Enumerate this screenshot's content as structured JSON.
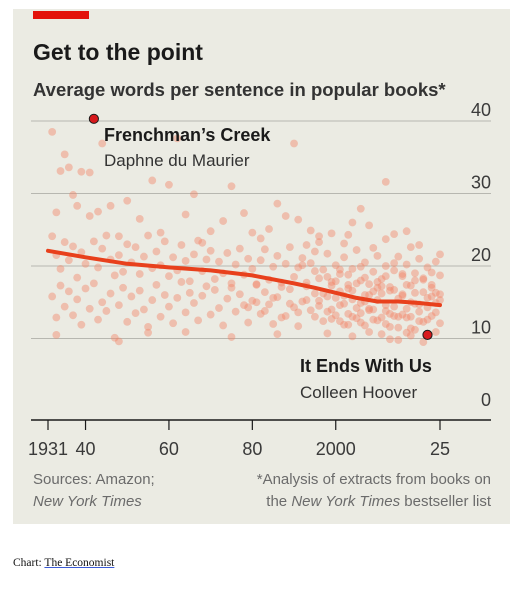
{
  "header": {
    "title": "Get to the point",
    "subtitle": "Average words per sentence in popular books*"
  },
  "footer": {
    "sources_line1": "Sources: Amazon;",
    "sources_line2": "New York Times",
    "note_line1": "*Analysis of extracts from books on",
    "note_line2_prefix": "the ",
    "note_line2_italic": "New York Times",
    "note_line2_suffix": " bestseller list"
  },
  "credit": {
    "prefix": "Chart: ",
    "brand": "The Economist"
  },
  "colors": {
    "accent_red": "#e3120b",
    "dot": "#f2886a",
    "trend": "#e8401c",
    "highlight_dot": "#d7191c",
    "panel_bg": "#ebebe3"
  },
  "chart_data": {
    "type": "scatter",
    "xlim": [
      1931,
      2025
    ],
    "ylim": [
      0,
      40
    ],
    "x_ticks": [
      {
        "value": 1931,
        "label": "1931"
      },
      {
        "value": 1940,
        "label": "40"
      },
      {
        "value": 1960,
        "label": "60"
      },
      {
        "value": 1980,
        "label": "80"
      },
      {
        "value": 2000,
        "label": "2000"
      },
      {
        "value": 2025,
        "label": "25"
      }
    ],
    "y_ticks": [
      {
        "value": 0,
        "label": "0"
      },
      {
        "value": 10,
        "label": "10"
      },
      {
        "value": 20,
        "label": "20"
      },
      {
        "value": 30,
        "label": "30"
      },
      {
        "value": 40,
        "label": "40"
      }
    ],
    "grid": "horizontal",
    "y_axis_side": "right",
    "trend": {
      "x": [
        1931,
        1940,
        1950,
        1960,
        1970,
        1980,
        1990,
        1995,
        2000,
        2005,
        2010,
        2015,
        2020,
        2025
      ],
      "y": [
        22.1,
        21.2,
        20.3,
        19.8,
        19.4,
        18.7,
        17.6,
        17.0,
        16.3,
        15.6,
        15.1,
        15.1,
        14.9,
        14.6
      ]
    },
    "highlights": [
      {
        "label": "Frenchman’s Creek",
        "author": "Daphne du Maurier",
        "x": 1942,
        "y": 40.3
      },
      {
        "label": "It Ends With Us",
        "author": "Colleen Hoover",
        "x": 2022,
        "y": 10.5
      }
    ],
    "scatter_points": [
      [
        1932,
        38.5
      ],
      [
        1933,
        27.4
      ],
      [
        1934,
        33.1
      ],
      [
        1935,
        35.4
      ],
      [
        1936,
        33.6
      ],
      [
        1937,
        29.8
      ],
      [
        1938,
        28.3
      ],
      [
        1939,
        33.0
      ],
      [
        1941,
        32.9
      ],
      [
        1944,
        36.9
      ],
      [
        1941,
        26.9
      ],
      [
        1943,
        27.5
      ],
      [
        1946,
        28.3
      ],
      [
        1948,
        24.1
      ],
      [
        1950,
        29.0
      ],
      [
        1953,
        26.5
      ],
      [
        1956,
        31.8
      ],
      [
        1958,
        24.6
      ],
      [
        1960,
        31.2
      ],
      [
        1962,
        37.6
      ],
      [
        1964,
        27.1
      ],
      [
        1966,
        29.9
      ],
      [
        1968,
        23.2
      ],
      [
        1970,
        24.8
      ],
      [
        1973,
        26.2
      ],
      [
        1975,
        31.0
      ],
      [
        1978,
        27.3
      ],
      [
        1980,
        24.6
      ],
      [
        1982,
        23.8
      ],
      [
        1984,
        25.1
      ],
      [
        1986,
        28.6
      ],
      [
        1988,
        26.9
      ],
      [
        1990,
        36.9
      ],
      [
        1991,
        26.4
      ],
      [
        1994,
        24.9
      ],
      [
        1996,
        24.1
      ],
      [
        1999,
        24.5
      ],
      [
        2003,
        24.3
      ],
      [
        2006,
        27.9
      ],
      [
        2008,
        25.6
      ],
      [
        2012,
        31.6
      ],
      [
        2014,
        24.4
      ],
      [
        2017,
        24.8
      ],
      [
        2020,
        22.9
      ],
      [
        1932,
        24.1
      ],
      [
        1933,
        21.5
      ],
      [
        1934,
        19.6
      ],
      [
        1935,
        23.3
      ],
      [
        1936,
        20.8
      ],
      [
        1937,
        22.7
      ],
      [
        1938,
        18.4
      ],
      [
        1939,
        21.9
      ],
      [
        1940,
        20.3
      ],
      [
        1942,
        23.4
      ],
      [
        1943,
        19.8
      ],
      [
        1944,
        22.4
      ],
      [
        1945,
        24.2
      ],
      [
        1946,
        20.9
      ],
      [
        1947,
        18.7
      ],
      [
        1948,
        21.5
      ],
      [
        1949,
        19.2
      ],
      [
        1950,
        23.0
      ],
      [
        1951,
        20.5
      ],
      [
        1952,
        22.6
      ],
      [
        1953,
        18.9
      ],
      [
        1954,
        21.3
      ],
      [
        1955,
        24.2
      ],
      [
        1956,
        19.7
      ],
      [
        1957,
        22.0
      ],
      [
        1958,
        20.1
      ],
      [
        1959,
        23.4
      ],
      [
        1960,
        18.6
      ],
      [
        1961,
        21.2
      ],
      [
        1962,
        19.4
      ],
      [
        1963,
        22.9
      ],
      [
        1964,
        20.7
      ],
      [
        1965,
        17.9
      ],
      [
        1966,
        21.6
      ],
      [
        1967,
        23.5
      ],
      [
        1968,
        19.3
      ],
      [
        1969,
        20.9
      ],
      [
        1970,
        22.1
      ],
      [
        1971,
        18.2
      ],
      [
        1972,
        20.6
      ],
      [
        1973,
        19.0
      ],
      [
        1974,
        21.8
      ],
      [
        1975,
        17.6
      ],
      [
        1976,
        20.2
      ],
      [
        1977,
        22.4
      ],
      [
        1978,
        18.8
      ],
      [
        1979,
        21.0
      ],
      [
        1980,
        19.6
      ],
      [
        1981,
        17.4
      ],
      [
        1982,
        20.8
      ],
      [
        1983,
        22.3
      ],
      [
        1984,
        18.1
      ],
      [
        1985,
        19.9
      ],
      [
        1986,
        21.4
      ],
      [
        1987,
        17.7
      ],
      [
        1988,
        20.3
      ],
      [
        1989,
        22.6
      ],
      [
        1990,
        18.5
      ],
      [
        1991,
        19.8
      ],
      [
        1992,
        21.1
      ],
      [
        1993,
        17.2
      ],
      [
        1994,
        20.4
      ],
      [
        1995,
        22.0
      ],
      [
        1996,
        18.3
      ],
      [
        1997,
        19.5
      ],
      [
        1998,
        21.7
      ],
      [
        1999,
        17.8
      ],
      [
        2000,
        20.1
      ],
      [
        2001,
        18.9
      ],
      [
        2002,
        21.2
      ],
      [
        2003,
        17.4
      ],
      [
        2004,
        19.6
      ],
      [
        2005,
        22.2
      ],
      [
        2006,
        18.0
      ],
      [
        2007,
        20.5
      ],
      [
        2008,
        17.5
      ],
      [
        2009,
        19.2
      ],
      [
        2010,
        21.4
      ],
      [
        2011,
        18.2
      ],
      [
        2012,
        20.0
      ],
      [
        2013,
        17.1
      ],
      [
        2014,
        19.4
      ],
      [
        2015,
        21.3
      ],
      [
        2016,
        18.6
      ],
      [
        2017,
        20.2
      ],
      [
        2018,
        17.3
      ],
      [
        2019,
        19.0
      ],
      [
        2020,
        21.0
      ],
      [
        2021,
        18.1
      ],
      [
        2022,
        19.8
      ],
      [
        2023,
        17.4
      ],
      [
        2024,
        20.6
      ],
      [
        1932,
        15.8
      ],
      [
        1933,
        12.9
      ],
      [
        1934,
        17.3
      ],
      [
        1935,
        14.4
      ],
      [
        1936,
        16.5
      ],
      [
        1937,
        13.2
      ],
      [
        1938,
        15.4
      ],
      [
        1939,
        11.9
      ],
      [
        1940,
        16.9
      ],
      [
        1941,
        14.1
      ],
      [
        1942,
        17.6
      ],
      [
        1943,
        12.6
      ],
      [
        1944,
        15.0
      ],
      [
        1945,
        13.8
      ],
      [
        1946,
        16.2
      ],
      [
        1947,
        10.1
      ],
      [
        1948,
        14.6
      ],
      [
        1949,
        17.0
      ],
      [
        1950,
        12.3
      ],
      [
        1951,
        15.8
      ],
      [
        1952,
        13.5
      ],
      [
        1953,
        16.6
      ],
      [
        1954,
        14.0
      ],
      [
        1955,
        11.6
      ],
      [
        1956,
        15.3
      ],
      [
        1957,
        17.4
      ],
      [
        1958,
        13.0
      ],
      [
        1959,
        16.0
      ],
      [
        1960,
        14.4
      ],
      [
        1961,
        12.1
      ],
      [
        1962,
        15.6
      ],
      [
        1963,
        17.8
      ],
      [
        1964,
        13.6
      ],
      [
        1965,
        16.3
      ],
      [
        1966,
        14.9
      ],
      [
        1967,
        12.5
      ],
      [
        1968,
        15.9
      ],
      [
        1969,
        17.2
      ],
      [
        1970,
        13.3
      ],
      [
        1971,
        16.7
      ],
      [
        1972,
        14.2
      ],
      [
        1973,
        11.8
      ],
      [
        1974,
        15.5
      ],
      [
        1975,
        17.0
      ],
      [
        1976,
        13.7
      ],
      [
        1977,
        16.1
      ],
      [
        1978,
        14.6
      ],
      [
        1979,
        12.2
      ],
      [
        1980,
        15.2
      ],
      [
        1981,
        17.5
      ],
      [
        1982,
        13.4
      ],
      [
        1983,
        16.4
      ],
      [
        1984,
        14.7
      ],
      [
        1985,
        12.0
      ],
      [
        1986,
        15.7
      ],
      [
        1987,
        17.1
      ],
      [
        1988,
        13.1
      ],
      [
        1989,
        16.8
      ],
      [
        1990,
        14.3
      ],
      [
        1991,
        11.7
      ],
      [
        1992,
        15.1
      ],
      [
        1993,
        17.7
      ],
      [
        1994,
        13.9
      ],
      [
        1995,
        16.2
      ],
      [
        1996,
        14.5
      ],
      [
        1997,
        12.4
      ],
      [
        1998,
        15.8
      ],
      [
        1999,
        17.3
      ],
      [
        2000,
        13.2
      ],
      [
        2001,
        16.5
      ],
      [
        2002,
        14.8
      ],
      [
        2003,
        11.9
      ],
      [
        2004,
        15.4
      ],
      [
        2005,
        17.6
      ],
      [
        2006,
        13.5
      ],
      [
        2007,
        16.0
      ],
      [
        2008,
        14.1
      ],
      [
        2009,
        12.6
      ],
      [
        2010,
        15.3
      ],
      [
        2011,
        17.2
      ],
      [
        2012,
        13.8
      ],
      [
        2013,
        16.6
      ],
      [
        2014,
        14.4
      ],
      [
        2015,
        11.5
      ],
      [
        2016,
        15.9
      ],
      [
        2017,
        17.4
      ],
      [
        2018,
        13.0
      ],
      [
        2019,
        16.3
      ],
      [
        2020,
        14.7
      ],
      [
        2021,
        12.3
      ],
      [
        2022,
        15.6
      ],
      [
        2023,
        17.0
      ],
      [
        2024,
        13.6
      ],
      [
        2025,
        16.1
      ],
      [
        1996,
        15.2
      ],
      [
        1998,
        13.7
      ],
      [
        2001,
        14.6
      ],
      [
        2003,
        16.9
      ],
      [
        2005,
        12.8
      ],
      [
        2007,
        15.1
      ],
      [
        2009,
        14.0
      ],
      [
        2011,
        16.2
      ],
      [
        2013,
        13.4
      ],
      [
        2015,
        15.5
      ],
      [
        2017,
        12.9
      ],
      [
        2019,
        14.8
      ],
      [
        2021,
        16.4
      ],
      [
        2023,
        13.1
      ],
      [
        2025,
        15.3
      ],
      [
        1999,
        12.7
      ],
      [
        2002,
        15.9
      ],
      [
        2004,
        13.0
      ],
      [
        2006,
        14.9
      ],
      [
        2008,
        16.0
      ],
      [
        2010,
        12.5
      ],
      [
        2012,
        14.6
      ],
      [
        2014,
        16.7
      ],
      [
        2016,
        13.3
      ],
      [
        2018,
        15.0
      ],
      [
        2020,
        12.4
      ],
      [
        2022,
        14.3
      ],
      [
        2024,
        16.3
      ],
      [
        2000,
        15.6
      ],
      [
        2002,
        11.9
      ],
      [
        2004,
        16.6
      ],
      [
        2006,
        12.2
      ],
      [
        2008,
        13.9
      ],
      [
        2010,
        17.0
      ],
      [
        2012,
        12.0
      ],
      [
        2014,
        13.1
      ],
      [
        2016,
        16.1
      ],
      [
        2018,
        11.4
      ],
      [
        2020,
        13.7
      ],
      [
        2022,
        12.6
      ],
      [
        2024,
        14.9
      ],
      [
        2025,
        12.1
      ],
      [
        2023,
        15.8
      ],
      [
        2019,
        11.2
      ],
      [
        2017,
        14.1
      ],
      [
        2015,
        13.0
      ],
      [
        2013,
        11.6
      ],
      [
        2011,
        12.9
      ],
      [
        2009,
        16.5
      ],
      [
        2007,
        11.8
      ],
      [
        2005,
        14.2
      ],
      [
        2003,
        13.4
      ],
      [
        2001,
        12.4
      ],
      [
        1999,
        14.0
      ],
      [
        1997,
        16.2
      ],
      [
        1995,
        13.0
      ],
      [
        1993,
        15.3
      ],
      [
        1991,
        13.6
      ],
      [
        1989,
        14.8
      ],
      [
        1987,
        12.9
      ],
      [
        1985,
        15.6
      ],
      [
        1983,
        13.8
      ],
      [
        1981,
        15.0
      ],
      [
        1979,
        14.3
      ],
      [
        2011,
        10.6
      ],
      [
        2015,
        9.8
      ],
      [
        2018,
        10.4
      ],
      [
        2021,
        9.5
      ],
      [
        2024,
        10.9
      ],
      [
        2008,
        10.9
      ],
      [
        2013,
        9.9
      ],
      [
        2017,
        10.8
      ],
      [
        1998,
        10.7
      ],
      [
        2004,
        10.3
      ],
      [
        1986,
        10.6
      ],
      [
        1975,
        10.2
      ],
      [
        1964,
        10.9
      ],
      [
        1955,
        10.8
      ],
      [
        1948,
        9.6
      ],
      [
        1933,
        10.5
      ],
      [
        1998,
        18.5
      ],
      [
        2003,
        18.8
      ],
      [
        2007,
        18.4
      ],
      [
        2012,
        18.6
      ],
      [
        2016,
        18.9
      ],
      [
        2021,
        18.3
      ],
      [
        2025,
        18.7
      ],
      [
        2000,
        17.9
      ],
      [
        2010,
        17.8
      ],
      [
        2019,
        18.0
      ],
      [
        2023,
        19.1
      ],
      [
        2014,
        20.4
      ],
      [
        2006,
        19.9
      ],
      [
        2001,
        19.5
      ],
      [
        1995,
        19.3
      ],
      [
        1992,
        20.1
      ],
      [
        2002,
        23.1
      ],
      [
        2009,
        22.5
      ],
      [
        2018,
        22.6
      ],
      [
        2025,
        21.6
      ],
      [
        1996,
        23.3
      ],
      [
        1993,
        22.9
      ],
      [
        2012,
        23.7
      ],
      [
        2004,
        26.0
      ]
    ]
  }
}
